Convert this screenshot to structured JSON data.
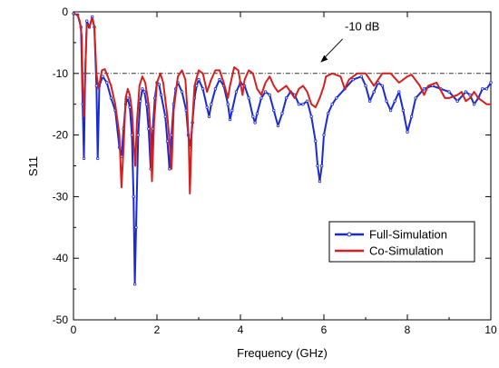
{
  "chart_data": {
    "type": "line",
    "xlabel": "Frequency (GHz)",
    "ylabel": "S11",
    "xlim": [
      0,
      10
    ],
    "ylim": [
      -50,
      0
    ],
    "xticks": [
      0,
      2,
      4,
      6,
      8,
      10
    ],
    "yticks": [
      0,
      -10,
      -20,
      -30,
      -40,
      -50
    ],
    "reference_line": {
      "y": -10,
      "label": "-10 dB"
    },
    "legend": {
      "placement": "bottom-right",
      "entries": [
        "Full-Simulation",
        "Co-Simulation"
      ]
    },
    "series": [
      {
        "name": "Full-Simulation",
        "color": "#1a2bd6",
        "markers": true,
        "points": [
          [
            0.0,
            -0.3
          ],
          [
            0.1,
            -0.5
          ],
          [
            0.18,
            -2.5
          ],
          [
            0.22,
            -15
          ],
          [
            0.25,
            -23.8
          ],
          [
            0.28,
            -10
          ],
          [
            0.32,
            -1.5
          ],
          [
            0.38,
            -2.5
          ],
          [
            0.45,
            -0.8
          ],
          [
            0.5,
            -2.5
          ],
          [
            0.55,
            -12
          ],
          [
            0.58,
            -23.8
          ],
          [
            0.62,
            -12
          ],
          [
            0.7,
            -10.5
          ],
          [
            0.8,
            -11.5
          ],
          [
            0.9,
            -14
          ],
          [
            1.0,
            -16
          ],
          [
            1.1,
            -22
          ],
          [
            1.15,
            -23.5
          ],
          [
            1.2,
            -19
          ],
          [
            1.25,
            -15
          ],
          [
            1.3,
            -14
          ],
          [
            1.35,
            -15.5
          ],
          [
            1.4,
            -20
          ],
          [
            1.44,
            -30
          ],
          [
            1.47,
            -44.2
          ],
          [
            1.5,
            -35
          ],
          [
            1.55,
            -20
          ],
          [
            1.6,
            -14.5
          ],
          [
            1.65,
            -12.5
          ],
          [
            1.7,
            -13
          ],
          [
            1.75,
            -15
          ],
          [
            1.8,
            -19
          ],
          [
            1.85,
            -25.5
          ],
          [
            1.9,
            -19
          ],
          [
            1.95,
            -14
          ],
          [
            2.0,
            -11.5
          ],
          [
            2.05,
            -11.8
          ],
          [
            2.1,
            -13.5
          ],
          [
            2.2,
            -17
          ],
          [
            2.25,
            -21
          ],
          [
            2.3,
            -25.5
          ],
          [
            2.35,
            -20
          ],
          [
            2.4,
            -15
          ],
          [
            2.45,
            -12.5
          ],
          [
            2.5,
            -11.5
          ],
          [
            2.6,
            -13
          ],
          [
            2.7,
            -16
          ],
          [
            2.75,
            -20
          ],
          [
            2.8,
            -22
          ],
          [
            2.85,
            -18
          ],
          [
            2.9,
            -14
          ],
          [
            2.95,
            -12
          ],
          [
            3.0,
            -11
          ],
          [
            3.1,
            -12.5
          ],
          [
            3.2,
            -15.5
          ],
          [
            3.25,
            -17
          ],
          [
            3.3,
            -15
          ],
          [
            3.4,
            -12.5
          ],
          [
            3.5,
            -11
          ],
          [
            3.6,
            -12
          ],
          [
            3.7,
            -15
          ],
          [
            3.75,
            -17.5
          ],
          [
            3.8,
            -16
          ],
          [
            3.9,
            -13
          ],
          [
            4.0,
            -11.5
          ],
          [
            4.1,
            -12
          ],
          [
            4.2,
            -14
          ],
          [
            4.3,
            -17
          ],
          [
            4.35,
            -18
          ],
          [
            4.4,
            -16.5
          ],
          [
            4.5,
            -14
          ],
          [
            4.6,
            -13
          ],
          [
            4.7,
            -13.5
          ],
          [
            4.8,
            -16
          ],
          [
            4.9,
            -18.5
          ],
          [
            5.0,
            -16.5
          ],
          [
            5.1,
            -14
          ],
          [
            5.2,
            -13
          ],
          [
            5.3,
            -13.5
          ],
          [
            5.4,
            -15
          ],
          [
            5.5,
            -15
          ],
          [
            5.6,
            -14.5
          ],
          [
            5.7,
            -17
          ],
          [
            5.8,
            -21
          ],
          [
            5.85,
            -25
          ],
          [
            5.9,
            -27.5
          ],
          [
            5.95,
            -25
          ],
          [
            6.0,
            -20
          ],
          [
            6.1,
            -16.5
          ],
          [
            6.2,
            -15
          ],
          [
            6.3,
            -14
          ],
          [
            6.5,
            -12.5
          ],
          [
            6.7,
            -11
          ],
          [
            6.9,
            -10.5
          ],
          [
            7.0,
            -12
          ],
          [
            7.1,
            -14.5
          ],
          [
            7.2,
            -13
          ],
          [
            7.3,
            -11.5
          ],
          [
            7.4,
            -12
          ],
          [
            7.5,
            -14.5
          ],
          [
            7.6,
            -16
          ],
          [
            7.7,
            -14.5
          ],
          [
            7.8,
            -13
          ],
          [
            7.9,
            -16
          ],
          [
            8.0,
            -19.5
          ],
          [
            8.1,
            -17
          ],
          [
            8.2,
            -14
          ],
          [
            8.4,
            -12.5
          ],
          [
            8.6,
            -12
          ],
          [
            8.8,
            -12.5
          ],
          [
            9.0,
            -13
          ],
          [
            9.2,
            -14.5
          ],
          [
            9.4,
            -13
          ],
          [
            9.5,
            -13.5
          ],
          [
            9.6,
            -15
          ],
          [
            9.7,
            -14
          ],
          [
            9.8,
            -12.5
          ],
          [
            9.9,
            -12.5
          ],
          [
            10.0,
            -11.5
          ]
        ]
      },
      {
        "name": "Co-Simulation",
        "color": "#d42020",
        "markers": false,
        "points": [
          [
            0.0,
            -0.3
          ],
          [
            0.1,
            -0.5
          ],
          [
            0.15,
            -1.5
          ],
          [
            0.2,
            -4
          ],
          [
            0.22,
            -12
          ],
          [
            0.25,
            -17
          ],
          [
            0.28,
            -10
          ],
          [
            0.32,
            -2
          ],
          [
            0.38,
            -2.5
          ],
          [
            0.45,
            -1
          ],
          [
            0.5,
            -2.5
          ],
          [
            0.55,
            -10
          ],
          [
            0.6,
            -12.5
          ],
          [
            0.68,
            -9.5
          ],
          [
            0.75,
            -9.3
          ],
          [
            0.82,
            -10.5
          ],
          [
            0.9,
            -12
          ],
          [
            1.0,
            -15
          ],
          [
            1.1,
            -20
          ],
          [
            1.15,
            -28.5
          ],
          [
            1.2,
            -22
          ],
          [
            1.25,
            -14
          ],
          [
            1.3,
            -12.5
          ],
          [
            1.35,
            -13.5
          ],
          [
            1.4,
            -16
          ],
          [
            1.45,
            -22
          ],
          [
            1.48,
            -25
          ],
          [
            1.52,
            -18
          ],
          [
            1.58,
            -12
          ],
          [
            1.65,
            -10.5
          ],
          [
            1.72,
            -11.5
          ],
          [
            1.8,
            -15
          ],
          [
            1.85,
            -20
          ],
          [
            1.88,
            -27.5
          ],
          [
            1.93,
            -18
          ],
          [
            2.0,
            -11.5
          ],
          [
            2.08,
            -10
          ],
          [
            2.15,
            -11.5
          ],
          [
            2.25,
            -17
          ],
          [
            2.3,
            -21
          ],
          [
            2.35,
            -25.5
          ],
          [
            2.4,
            -16
          ],
          [
            2.5,
            -10.5
          ],
          [
            2.6,
            -9.5
          ],
          [
            2.68,
            -11
          ],
          [
            2.72,
            -15
          ],
          [
            2.76,
            -21
          ],
          [
            2.79,
            -29.5
          ],
          [
            2.83,
            -20
          ],
          [
            2.9,
            -12
          ],
          [
            3.0,
            -9.5
          ],
          [
            3.1,
            -10
          ],
          [
            3.2,
            -13
          ],
          [
            3.3,
            -11
          ],
          [
            3.4,
            -9.5
          ],
          [
            3.5,
            -9.5
          ],
          [
            3.6,
            -11.5
          ],
          [
            3.7,
            -14
          ],
          [
            3.75,
            -12
          ],
          [
            3.85,
            -9
          ],
          [
            3.95,
            -9.5
          ],
          [
            4.05,
            -13.5
          ],
          [
            4.1,
            -11
          ],
          [
            4.2,
            -9.5
          ],
          [
            4.3,
            -10
          ],
          [
            4.4,
            -12.5
          ],
          [
            4.5,
            -13.5
          ],
          [
            4.6,
            -11.5
          ],
          [
            4.7,
            -10.5
          ],
          [
            4.8,
            -12
          ],
          [
            4.9,
            -13
          ],
          [
            5.0,
            -12.5
          ],
          [
            5.1,
            -12
          ],
          [
            5.2,
            -13
          ],
          [
            5.3,
            -14
          ],
          [
            5.4,
            -12.5
          ],
          [
            5.5,
            -12
          ],
          [
            5.6,
            -13
          ],
          [
            5.7,
            -15
          ],
          [
            5.8,
            -15.5
          ],
          [
            5.9,
            -14
          ],
          [
            6.0,
            -12
          ],
          [
            6.05,
            -10.5
          ],
          [
            6.2,
            -10
          ],
          [
            6.4,
            -10.5
          ],
          [
            6.5,
            -12.5
          ],
          [
            6.6,
            -11
          ],
          [
            6.8,
            -10
          ],
          [
            7.0,
            -10
          ],
          [
            7.2,
            -12
          ],
          [
            7.4,
            -10
          ],
          [
            7.6,
            -10
          ],
          [
            7.8,
            -11.5
          ],
          [
            8.0,
            -10.5
          ],
          [
            8.1,
            -10.2
          ],
          [
            8.3,
            -12
          ],
          [
            8.4,
            -13.5
          ],
          [
            8.5,
            -12
          ],
          [
            8.7,
            -11.5
          ],
          [
            8.9,
            -14
          ],
          [
            9.0,
            -14
          ],
          [
            9.2,
            -13.5
          ],
          [
            9.3,
            -13
          ],
          [
            9.4,
            -14.5
          ],
          [
            9.5,
            -14
          ],
          [
            9.6,
            -13
          ],
          [
            9.7,
            -14
          ],
          [
            9.8,
            -14.5
          ],
          [
            9.9,
            -15
          ],
          [
            10.0,
            -15
          ]
        ]
      }
    ]
  }
}
